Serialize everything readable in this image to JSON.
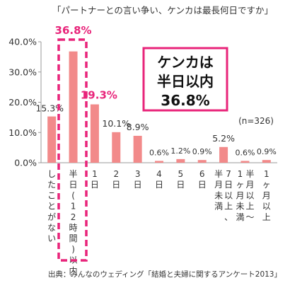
{
  "chart_data": {
    "type": "bar",
    "title": "「パートナーとの言い争い、ケンカは最長何日ですか」",
    "categories": [
      "したことがない",
      "半日(12時間)以内",
      "1日",
      "2日",
      "3日",
      "4日",
      "5日",
      "6日",
      "7日以上、半月未満",
      "半月以上～1ヶ月未満",
      "1ヶ月以上"
    ],
    "values": [
      15.3,
      36.8,
      19.3,
      10.1,
      8.9,
      0.6,
      1.2,
      0.9,
      5.2,
      0.6,
      0.9
    ],
    "value_labels": [
      "15.3%",
      "36.8%",
      "19.3%",
      "10.1%",
      "8.9%",
      "0.6%",
      "1.2%",
      "0.9%",
      "5.2%",
      "0.6%",
      "0.9%"
    ],
    "ylim": [
      0,
      40
    ],
    "y_ticks": [
      "0.0%",
      "10.0%",
      "20.0%",
      "30.0%",
      "40.0%"
    ],
    "grid": false,
    "highlight_index": 1,
    "callout_lines": [
      "ケンカは",
      "半日以内",
      "36.8%"
    ],
    "sample_size": "(n=326)",
    "source": "出典：みんなのウェディング「結婚と夫婦に関するアンケート2013」",
    "colors": {
      "bar": "#f28a8a",
      "highlight": "#e8247a",
      "axis": "#999999",
      "text": "#333333"
    }
  }
}
